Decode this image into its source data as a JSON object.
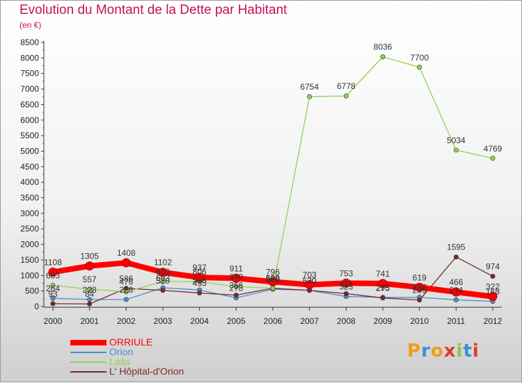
{
  "title": "Evolution du Montant de la Dette par Habitant",
  "subtitle": "(en €)",
  "logo": {
    "text": "Proxiti",
    "colors": [
      "#f39b1c",
      "#3a8fd4",
      "#f39b1c",
      "#e23a2a",
      "#8dc63f",
      "#3a8fd4",
      "#e23a2a"
    ]
  },
  "chart_data": {
    "type": "line",
    "x": [
      "2000",
      "2001",
      "2002",
      "2003",
      "2004",
      "2005",
      "2006",
      "2007",
      "2008",
      "2009",
      "2010",
      "2011",
      "2012"
    ],
    "ylim": [
      0,
      8500
    ],
    "yticks": [
      0,
      500,
      1000,
      1500,
      2000,
      2500,
      3000,
      3500,
      4000,
      4500,
      5000,
      5500,
      6000,
      6500,
      7000,
      7500,
      8000,
      8500
    ],
    "grid": false,
    "legend_position": "bottom-left",
    "series": [
      {
        "name": "ORRIULE",
        "color": "#ff0000",
        "values": [
          1108,
          1305,
          1408,
          1102,
          937,
          911,
          796,
          703,
          753,
          741,
          619,
          466,
          322
        ]
      },
      {
        "name": "Orion",
        "color": "#4a90c8",
        "values": [
          264,
          228,
          226,
          603,
          535,
          278,
          556,
          520,
          323,
          295,
          297,
          214,
          168
        ]
      },
      {
        "name": "Laàs",
        "color": "#8fd44a",
        "values": [
          683,
          557,
          476,
          806,
          806,
          640,
          589,
          6754,
          6778,
          8036,
          7700,
          5034,
          4769
        ]
      },
      {
        "name": "L' Hôpital-d'Orion",
        "color": "#7a2a2a",
        "values": [
          93,
          84,
          586,
          520,
          435,
          366,
          589,
          520,
          415,
          275,
          209,
          1595,
          974
        ]
      }
    ]
  }
}
